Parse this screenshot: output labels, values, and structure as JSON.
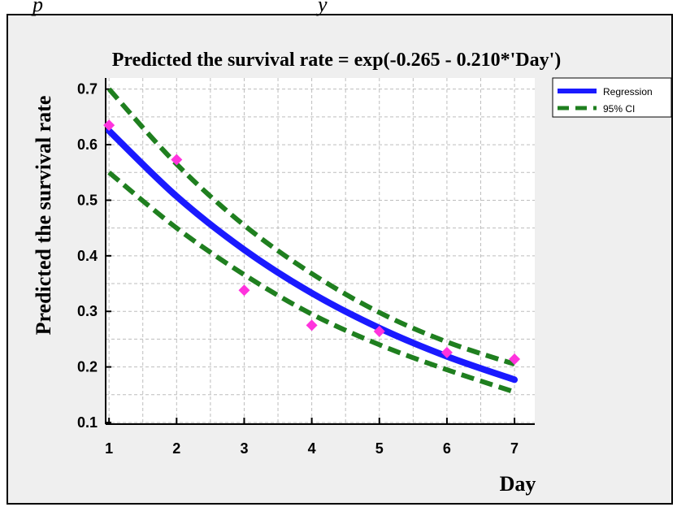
{
  "caption_fragment": "p                                                    y",
  "chart_data": {
    "type": "scatter",
    "title": "Predicted the survival rate = exp(-0.265 - 0.210*'Day')",
    "xlabel": "Day",
    "ylabel": "Predicted the survival rate",
    "xlim": [
      0.95,
      7.3
    ],
    "ylim": [
      0.1,
      0.72
    ],
    "x_ticks": [
      1,
      2,
      3,
      4,
      5,
      6,
      7
    ],
    "y_ticks": [
      0.1,
      0.2,
      0.3,
      0.4,
      0.5,
      0.6,
      0.7
    ],
    "y_tick_labels": [
      "0.1",
      "0.2",
      "0.3",
      "0.4",
      "0.5",
      "0.6",
      "0.7"
    ],
    "grid": true,
    "legend_position": "top-right",
    "observed_points": [
      {
        "x": 1,
        "y": 0.635
      },
      {
        "x": 2,
        "y": 0.573
      },
      {
        "x": 3,
        "y": 0.338
      },
      {
        "x": 4,
        "y": 0.275
      },
      {
        "x": 5,
        "y": 0.264
      },
      {
        "x": 6,
        "y": 0.226
      },
      {
        "x": 7,
        "y": 0.214
      }
    ],
    "series": [
      {
        "name": "Regression",
        "x": [
          1,
          2,
          3,
          4,
          5,
          6,
          7
        ],
        "y": [
          0.625,
          0.507,
          0.411,
          0.333,
          0.27,
          0.219,
          0.177
        ]
      },
      {
        "name": "95% CI",
        "x": [
          1,
          2,
          3,
          4,
          5,
          6,
          7
        ],
        "upper": [
          0.7,
          0.565,
          0.455,
          0.368,
          0.298,
          0.245,
          0.205
        ],
        "lower": [
          0.55,
          0.45,
          0.366,
          0.295,
          0.24,
          0.195,
          0.155
        ]
      }
    ],
    "colors": {
      "regression": "#1a1aff",
      "ci": "#1f7f1f",
      "points": "#ff33dd",
      "panel_bg": "#efefef",
      "plot_bg": "#ffffff",
      "grid": "#bdbdbd"
    }
  }
}
